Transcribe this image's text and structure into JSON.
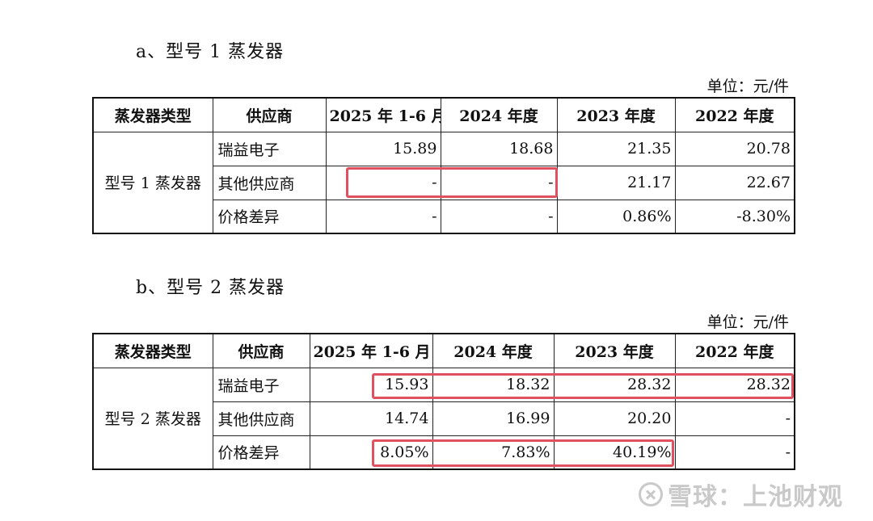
{
  "section_a": {
    "heading": "a、型号 1 蒸发器",
    "unit": "单位：元/件",
    "headers": [
      "蒸发器类型",
      "供应商",
      "2025 年 1-6 月",
      "2024 年度",
      "2023 年度",
      "2022 年度"
    ],
    "type_label": "型号 1 蒸发器",
    "rows": [
      {
        "supplier": "瑞益电子",
        "values": [
          "15.89",
          "18.68",
          "21.35",
          "20.78"
        ]
      },
      {
        "supplier": "其他供应商",
        "values": [
          "-",
          "-",
          "21.17",
          "22.67"
        ]
      },
      {
        "supplier": "价格差异",
        "values": [
          "-",
          "-",
          "0.86%",
          "-8.30%"
        ]
      }
    ]
  },
  "section_b": {
    "heading": "b、型号 2 蒸发器",
    "unit": "单位：元/件",
    "headers": [
      "蒸发器类型",
      "供应商",
      "2025 年 1-6 月",
      "2024 年度",
      "2023 年度",
      "2022 年度"
    ],
    "type_label": "型号 2 蒸发器",
    "rows": [
      {
        "supplier": "瑞益电子",
        "values": [
          "15.93",
          "18.32",
          "28.32",
          "28.32"
        ]
      },
      {
        "supplier": "其他供应商",
        "values": [
          "14.74",
          "16.99",
          "20.20",
          "-"
        ]
      },
      {
        "supplier": "价格差异",
        "values": [
          "8.05%",
          "7.83%",
          "40.19%",
          "-"
        ]
      }
    ]
  },
  "highlight_color": "#e0505e",
  "watermark": {
    "icon": "xueqiu-logo-icon",
    "text": "雪球：上池财观"
  }
}
